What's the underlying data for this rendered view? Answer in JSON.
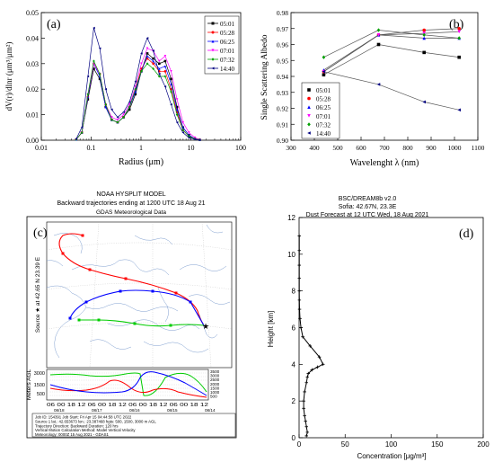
{
  "chart_data": [
    {
      "panel": "(a)",
      "type": "line",
      "xlabel": "Radius (μm)",
      "ylabel": "dV(r)/dlnr (μm³/μm²)",
      "xscale": "log",
      "xlim": [
        0.01,
        100
      ],
      "ylim": [
        0,
        0.05
      ],
      "xticks": [
        "0.01",
        "0.1",
        "1",
        "10",
        "100"
      ],
      "yticks": [
        "0.00",
        "0.01",
        "0.02",
        "0.03",
        "0.04",
        "0.05"
      ],
      "legend_position": "top-right",
      "x": [
        0.05,
        0.065,
        0.086,
        0.113,
        0.149,
        0.196,
        0.258,
        0.339,
        0.446,
        0.587,
        0.773,
        1.017,
        1.338,
        1.76,
        2.317,
        3.049,
        4.012,
        5.28,
        6.948,
        9.143,
        12.03,
        15.0
      ],
      "series": [
        {
          "name": "05:01",
          "color": "#000000",
          "marker": "square",
          "values": [
            0.0003,
            0.003,
            0.016,
            0.028,
            0.024,
            0.013,
            0.008,
            0.007,
            0.009,
            0.012,
            0.018,
            0.027,
            0.034,
            0.032,
            0.03,
            0.031,
            0.024,
            0.013,
            0.005,
            0.002,
            0.0005,
            0.0002
          ]
        },
        {
          "name": "05:28",
          "color": "#ff0000",
          "marker": "circle",
          "values": [
            0.0003,
            0.003,
            0.017,
            0.03,
            0.026,
            0.014,
            0.008,
            0.007,
            0.009,
            0.013,
            0.02,
            0.028,
            0.032,
            0.03,
            0.027,
            0.027,
            0.02,
            0.011,
            0.004,
            0.0015,
            0.0005,
            0.0002
          ]
        },
        {
          "name": "06:25",
          "color": "#0000ff",
          "marker": "triangle-up",
          "values": [
            0.0003,
            0.003,
            0.017,
            0.03,
            0.025,
            0.013,
            0.008,
            0.007,
            0.009,
            0.013,
            0.019,
            0.027,
            0.033,
            0.031,
            0.028,
            0.029,
            0.022,
            0.012,
            0.005,
            0.002,
            0.0005,
            0.0002
          ]
        },
        {
          "name": "07:01",
          "color": "#ff00ff",
          "marker": "triangle-down",
          "values": [
            0.0003,
            0.003,
            0.018,
            0.03,
            0.026,
            0.014,
            0.009,
            0.008,
            0.01,
            0.014,
            0.021,
            0.03,
            0.036,
            0.035,
            0.031,
            0.033,
            0.027,
            0.016,
            0.007,
            0.003,
            0.001,
            0.0003
          ]
        },
        {
          "name": "07:32",
          "color": "#00a000",
          "marker": "diamond",
          "values": [
            0.0003,
            0.003,
            0.018,
            0.031,
            0.026,
            0.014,
            0.008,
            0.007,
            0.009,
            0.013,
            0.02,
            0.027,
            0.03,
            0.028,
            0.025,
            0.025,
            0.019,
            0.01,
            0.004,
            0.0015,
            0.0005,
            0.0002
          ]
        },
        {
          "name": "14:40",
          "color": "#000080",
          "marker": "triangle-left",
          "values": [
            0.0005,
            0.005,
            0.025,
            0.044,
            0.036,
            0.02,
            0.012,
            0.009,
            0.011,
            0.015,
            0.023,
            0.034,
            0.04,
            0.035,
            0.026,
            0.021,
            0.014,
            0.007,
            0.003,
            0.001,
            0.0004,
            0.0001
          ]
        }
      ]
    },
    {
      "panel": "(b)",
      "type": "line",
      "xlabel": "Wavelenght λ (nm)",
      "ylabel": "Single Scattering Albedo",
      "xlim": [
        300,
        1100
      ],
      "ylim": [
        0.9,
        0.98
      ],
      "xticks": [
        "300",
        "400",
        "500",
        "600",
        "700",
        "800",
        "900",
        "1000",
        "1100"
      ],
      "yticks": [
        "0.90",
        "0.91",
        "0.92",
        "0.93",
        "0.94",
        "0.95",
        "0.96",
        "0.97",
        "0.98"
      ],
      "legend_position": "bottom-left",
      "x": [
        440,
        675,
        870,
        1020
      ],
      "series": [
        {
          "name": "05:01",
          "color": "#000000",
          "marker": "square",
          "values": [
            0.941,
            0.96,
            0.955,
            0.952
          ]
        },
        {
          "name": "05:28",
          "color": "#ff0000",
          "marker": "circle",
          "values": [
            0.943,
            0.966,
            0.969,
            0.97
          ]
        },
        {
          "name": "06:25",
          "color": "#0000ff",
          "marker": "triangle-up",
          "values": [
            0.944,
            0.966,
            0.964,
            0.964
          ]
        },
        {
          "name": "07:01",
          "color": "#ff00ff",
          "marker": "triangle-down",
          "values": [
            0.943,
            0.966,
            0.967,
            0.968
          ]
        },
        {
          "name": "07:32",
          "color": "#00a000",
          "marker": "diamond",
          "values": [
            0.952,
            0.969,
            0.966,
            0.964
          ]
        },
        {
          "name": "14:40",
          "color": "#000080",
          "marker": "triangle-left",
          "values": [
            0.943,
            0.935,
            0.924,
            0.919
          ]
        }
      ]
    },
    {
      "panel": "(c)",
      "type": "map",
      "header_line1": "NOAA HYSPLIT MODEL",
      "header_line2": "Backward trajectories ending at 1200 UTC 18 Aug 21",
      "header_line3": "GDAS Meteorological Data",
      "side_label": "Source ★ at  42.65 N   23.39 E",
      "profile_ylabel": "Meters AGL",
      "profile_yticks": [
        "3000",
        "1500",
        "500"
      ],
      "profile_right_ticks": [
        "3500",
        "3000",
        "2500",
        "2000",
        "1500",
        "1000",
        "500"
      ],
      "profile_time_ticks": "06 00 18 12 06 00 18 12 06 00 18 12 06 00 18 12",
      "profile_dates": [
        "08/18",
        "08/17",
        "08/16",
        "08/15",
        "08/14"
      ],
      "footer_lines": [
        "Job ID: 154391            Job Start: Fri Apr 15 04:44:58 UTC 2022",
        "Source 1 lat.: 42.653673  lon.: 23.387468  hgts: 500, 1500, 3000 m AGL",
        "Trajectory Direction: Backward     Duration: 120 hrs",
        "Vertical Motion Calculation Method:   Model Vertical Velocity",
        "Meteorology: 0000Z 15 Aug 2021 - GDAS1"
      ],
      "trajectories": [
        {
          "height_m": 500,
          "color": "#ff0000"
        },
        {
          "height_m": 1500,
          "color": "#0000ff"
        },
        {
          "height_m": 3000,
          "color": "#00cc00"
        }
      ]
    },
    {
      "panel": "(d)",
      "type": "line",
      "title_line1": "BSC/DREAM8b v2.0",
      "title_line2": "Sofia:  42.67N, 23.3E",
      "title_line3": "Dust Forecast at 12 UTC Wed, 18 Aug 2021",
      "xlabel": "Concentration [μg/m³]",
      "ylabel": "Height [km]",
      "xlim": [
        0,
        200
      ],
      "ylim": [
        0,
        12
      ],
      "xticks": [
        "0",
        "50",
        "100",
        "150",
        "200"
      ],
      "yticks": [
        "0",
        "2",
        "4",
        "6",
        "8",
        "10",
        "12"
      ],
      "series": [
        {
          "color": "#000000",
          "marker": "plus",
          "x": [
            8,
            9,
            8,
            7,
            6,
            5,
            5,
            6,
            8,
            9,
            10,
            14,
            20,
            26,
            22,
            12,
            4,
            2,
            1,
            0.5,
            0.3,
            0.2,
            0.2,
            0.2,
            0.2,
            0.2
          ],
          "y": [
            0.1,
            0.3,
            0.6,
            0.9,
            1.2,
            1.6,
            2.0,
            2.5,
            3.0,
            3.3,
            3.5,
            3.7,
            3.85,
            4.0,
            4.4,
            5.0,
            5.5,
            6.0,
            6.5,
            7.0,
            7.5,
            8.0,
            8.7,
            9.4,
            10.2,
            11.0
          ]
        }
      ]
    }
  ]
}
